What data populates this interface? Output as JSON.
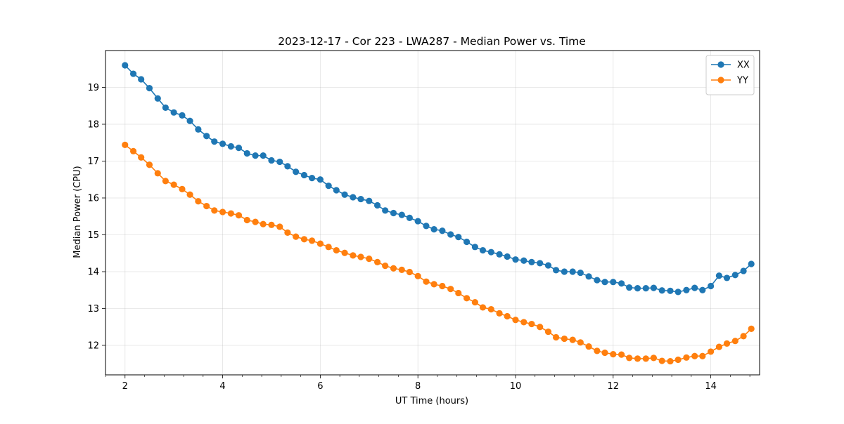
{
  "chart_data": {
    "type": "line",
    "title": "2023-12-17 - Cor 223 - LWA287 - Median Power vs. Time",
    "xlabel": "UT Time (hours)",
    "ylabel": "Median Power (CPU)",
    "xlim": [
      1.6,
      15.0
    ],
    "ylim": [
      11.2,
      20.0
    ],
    "xticks": [
      2,
      4,
      6,
      8,
      10,
      12,
      14
    ],
    "yticks": [
      12,
      13,
      14,
      15,
      16,
      17,
      18,
      19
    ],
    "x_minor_step": 0.4,
    "grid": true,
    "legend_position": "top-right",
    "x": [
      2.0,
      2.17,
      2.33,
      2.5,
      2.67,
      2.83,
      3.0,
      3.17,
      3.33,
      3.5,
      3.67,
      3.83,
      4.0,
      4.17,
      4.33,
      4.5,
      4.67,
      4.83,
      5.0,
      5.17,
      5.33,
      5.5,
      5.67,
      5.83,
      6.0,
      6.17,
      6.33,
      6.5,
      6.67,
      6.83,
      7.0,
      7.17,
      7.33,
      7.5,
      7.67,
      7.83,
      8.0,
      8.17,
      8.33,
      8.5,
      8.67,
      8.83,
      9.0,
      9.17,
      9.33,
      9.5,
      9.67,
      9.83,
      10.0,
      10.17,
      10.33,
      10.5,
      10.67,
      10.83,
      11.0,
      11.17,
      11.33,
      11.5,
      11.67,
      11.83,
      12.0,
      12.17,
      12.33,
      12.5,
      12.67,
      12.83,
      13.0,
      13.17,
      13.33,
      13.5,
      13.67,
      13.83,
      14.0,
      14.17,
      14.33,
      14.5,
      14.67,
      14.83
    ],
    "series": [
      {
        "name": "XX",
        "color": "#1f77b4",
        "values": [
          19.6,
          19.37,
          19.22,
          18.98,
          18.7,
          18.45,
          18.32,
          18.24,
          18.09,
          17.86,
          17.68,
          17.53,
          17.47,
          17.4,
          17.36,
          17.21,
          17.15,
          17.15,
          17.02,
          16.98,
          16.86,
          16.71,
          16.62,
          16.54,
          16.5,
          16.33,
          16.21,
          16.09,
          16.02,
          15.97,
          15.92,
          15.8,
          15.66,
          15.59,
          15.54,
          15.46,
          15.37,
          15.24,
          15.15,
          15.11,
          15.01,
          14.94,
          14.81,
          14.67,
          14.58,
          14.53,
          14.47,
          14.41,
          14.33,
          14.3,
          14.26,
          14.23,
          14.17,
          14.04,
          14.0,
          14.0,
          13.97,
          13.87,
          13.77,
          13.72,
          13.72,
          13.68,
          13.57,
          13.55,
          13.55,
          13.56,
          13.49,
          13.48,
          13.45,
          13.5,
          13.56,
          13.5,
          13.61,
          13.89,
          13.83,
          13.91,
          14.02,
          14.21
        ]
      },
      {
        "name": "YY",
        "color": "#ff7f0e",
        "values": [
          17.44,
          17.27,
          17.1,
          16.9,
          16.67,
          16.46,
          16.36,
          16.24,
          16.09,
          15.91,
          15.78,
          15.66,
          15.62,
          15.58,
          15.53,
          15.4,
          15.35,
          15.29,
          15.27,
          15.22,
          15.06,
          14.95,
          14.88,
          14.84,
          14.76,
          14.67,
          14.58,
          14.51,
          14.44,
          14.4,
          14.35,
          14.26,
          14.16,
          14.09,
          14.05,
          13.99,
          13.88,
          13.73,
          13.66,
          13.61,
          13.53,
          13.42,
          13.28,
          13.17,
          13.03,
          12.98,
          12.87,
          12.79,
          12.69,
          12.63,
          12.58,
          12.5,
          12.37,
          12.22,
          12.18,
          12.15,
          12.08,
          11.97,
          11.85,
          11.8,
          11.76,
          11.75,
          11.66,
          11.64,
          11.64,
          11.66,
          11.58,
          11.57,
          11.61,
          11.67,
          11.71,
          11.71,
          11.83,
          11.96,
          12.05,
          12.12,
          12.25,
          12.45
        ]
      }
    ]
  }
}
